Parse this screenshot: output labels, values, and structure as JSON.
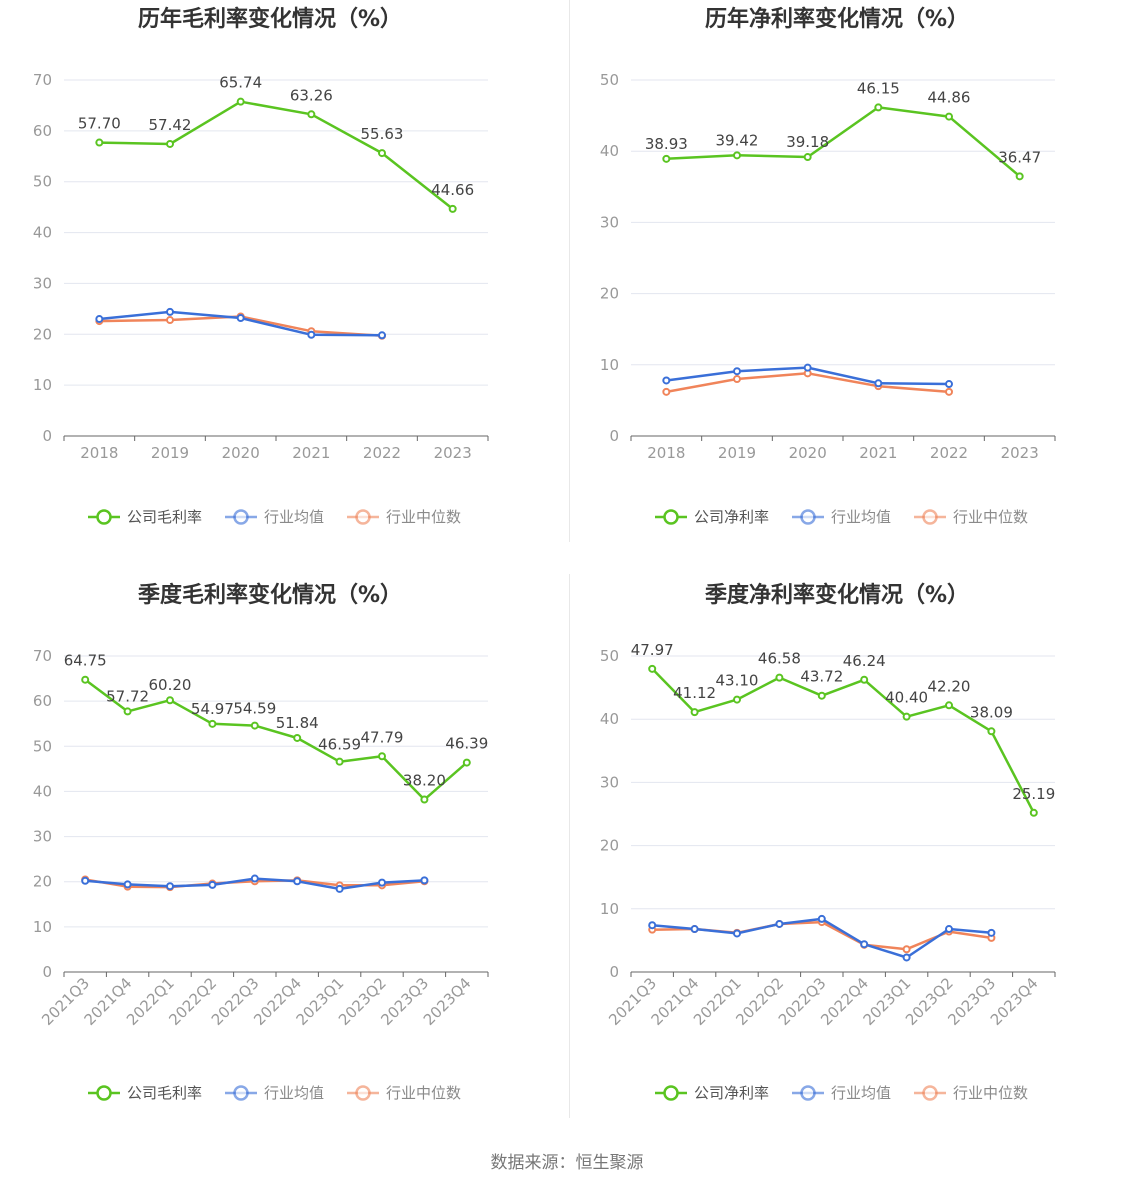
{
  "source": "数据来源：恒生聚源",
  "colors": {
    "company": "#5ac421",
    "avg": "#3a6fd8",
    "median": "#f0845a",
    "grid": "#e3e6ef",
    "axis": "#666666"
  },
  "chart_data": [
    {
      "type": "line",
      "title": "历年毛利率变化情况（%）",
      "categories": [
        "2018",
        "2019",
        "2020",
        "2021",
        "2022",
        "2023"
      ],
      "ylim": [
        0,
        70
      ],
      "yticks": [
        0,
        10,
        20,
        30,
        40,
        50,
        60,
        70
      ],
      "grid": true,
      "legend": "bottom",
      "series": [
        {
          "name": "公司毛利率",
          "role": "company",
          "values": [
            57.7,
            57.42,
            65.74,
            63.26,
            55.63,
            44.66
          ],
          "labels": [
            "57.70",
            "57.42",
            "65.74",
            "63.26",
            "55.63",
            "44.66"
          ]
        },
        {
          "name": "行业均值",
          "role": "avg",
          "values": [
            23.0,
            24.4,
            23.2,
            19.9,
            19.8,
            null
          ]
        },
        {
          "name": "行业中位数",
          "role": "median",
          "values": [
            22.6,
            22.8,
            23.5,
            20.6,
            19.7,
            null
          ]
        }
      ]
    },
    {
      "type": "line",
      "title": "历年净利率变化情况（%）",
      "categories": [
        "2018",
        "2019",
        "2020",
        "2021",
        "2022",
        "2023"
      ],
      "ylim": [
        0,
        50
      ],
      "yticks": [
        0,
        10,
        20,
        30,
        40,
        50
      ],
      "grid": true,
      "legend": "bottom",
      "series": [
        {
          "name": "公司净利率",
          "role": "company",
          "values": [
            38.93,
            39.42,
            39.18,
            46.15,
            44.86,
            36.47
          ],
          "labels": [
            "38.93",
            "39.42",
            "39.18",
            "46.15",
            "44.86",
            "36.47"
          ]
        },
        {
          "name": "行业均值",
          "role": "avg",
          "values": [
            7.8,
            9.1,
            9.6,
            7.4,
            7.3,
            null
          ]
        },
        {
          "name": "行业中位数",
          "role": "median",
          "values": [
            6.2,
            8.0,
            8.8,
            7.0,
            6.2,
            null
          ]
        }
      ]
    },
    {
      "type": "line",
      "title": "季度毛利率变化情况（%）",
      "categories": [
        "2021Q3",
        "2021Q4",
        "2022Q1",
        "2022Q2",
        "2022Q3",
        "2022Q4",
        "2023Q1",
        "2023Q2",
        "2023Q3",
        "2023Q4"
      ],
      "ylim": [
        0,
        70
      ],
      "yticks": [
        0,
        10,
        20,
        30,
        40,
        50,
        60,
        70
      ],
      "grid": true,
      "legend": "bottom",
      "series": [
        {
          "name": "公司毛利率",
          "role": "company",
          "values": [
            64.75,
            57.72,
            60.2,
            54.97,
            54.59,
            51.84,
            46.59,
            47.79,
            38.2,
            46.39
          ],
          "labels": [
            "64.75",
            "57.72",
            "60.20",
            "54.97",
            "54.59",
            "51.84",
            "46.59",
            "47.79",
            "38.20",
            "46.39"
          ]
        },
        {
          "name": "行业均值",
          "role": "avg",
          "values": [
            20.2,
            19.4,
            19.0,
            19.3,
            20.7,
            20.1,
            18.4,
            19.8,
            20.3,
            null
          ]
        },
        {
          "name": "行业中位数",
          "role": "median",
          "values": [
            20.5,
            18.9,
            18.8,
            19.6,
            20.1,
            20.3,
            19.2,
            19.2,
            20.1,
            null
          ]
        }
      ]
    },
    {
      "type": "line",
      "title": "季度净利率变化情况（%）",
      "categories": [
        "2021Q3",
        "2021Q4",
        "2022Q1",
        "2022Q2",
        "2022Q3",
        "2022Q4",
        "2023Q1",
        "2023Q2",
        "2023Q3",
        "2023Q4"
      ],
      "ylim": [
        0,
        50
      ],
      "yticks": [
        0,
        10,
        20,
        30,
        40,
        50
      ],
      "grid": true,
      "legend": "bottom",
      "series": [
        {
          "name": "公司净利率",
          "role": "company",
          "values": [
            47.97,
            41.12,
            43.1,
            46.58,
            43.72,
            46.24,
            40.4,
            42.2,
            38.09,
            25.19
          ],
          "labels": [
            "47.97",
            "41.12",
            "43.10",
            "46.58",
            "43.72",
            "46.24",
            "40.40",
            "42.20",
            "38.09",
            "25.19"
          ]
        },
        {
          "name": "行业均值",
          "role": "avg",
          "values": [
            7.4,
            6.8,
            6.1,
            7.6,
            8.4,
            4.4,
            2.3,
            6.8,
            6.2,
            null
          ]
        },
        {
          "name": "行业中位数",
          "role": "median",
          "values": [
            6.7,
            6.8,
            6.2,
            7.6,
            7.9,
            4.3,
            3.6,
            6.4,
            5.4,
            null
          ]
        }
      ]
    }
  ]
}
